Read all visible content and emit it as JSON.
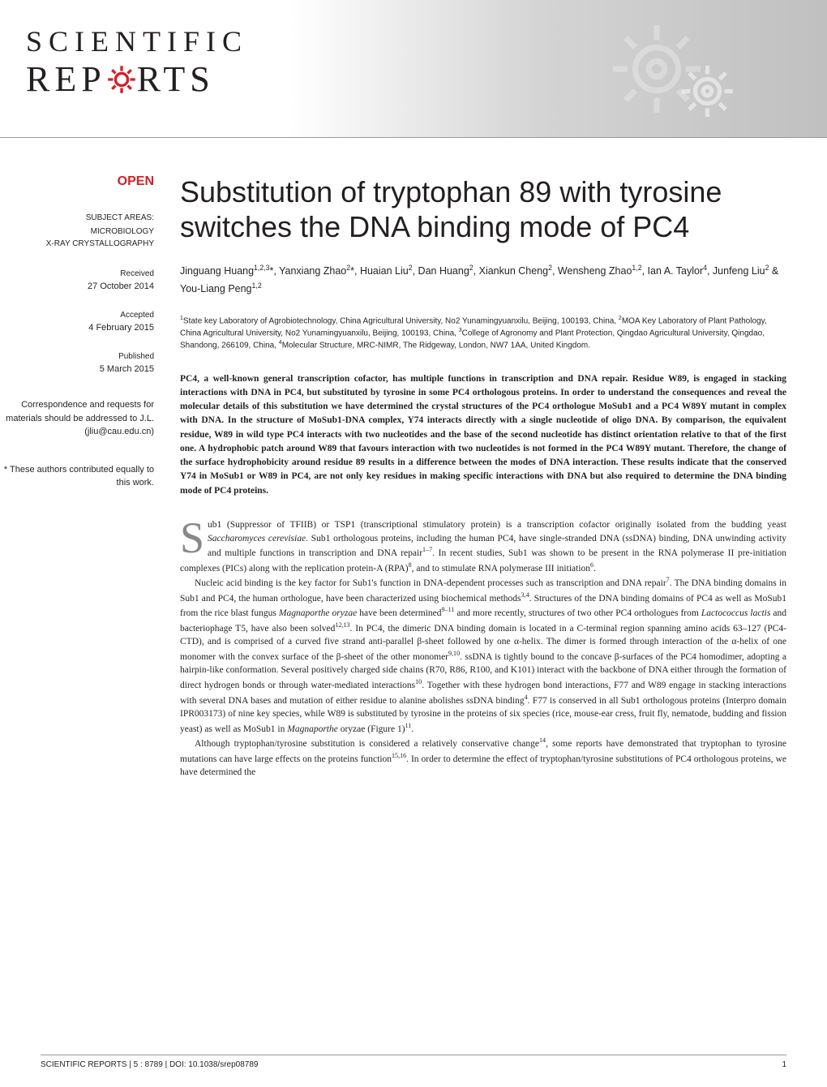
{
  "journal": {
    "logo_top": "SCIENTIFIC",
    "logo_bottom_left": "REP",
    "logo_bottom_right": "RTS"
  },
  "header": {
    "band_gradient_start": "#ffffff",
    "band_gradient_end": "#c0c0c0",
    "gear_color": "#d32027",
    "gear_decor_color": "#e8e8e8"
  },
  "sidebar": {
    "open_label": "OPEN",
    "open_color": "#d32027",
    "subject_heading": "SUBJECT AREAS:",
    "subjects": [
      "MICROBIOLOGY",
      "X-RAY CRYSTALLOGRAPHY"
    ],
    "received_label": "Received",
    "received_date": "27 October 2014",
    "accepted_label": "Accepted",
    "accepted_date": "4 February 2015",
    "published_label": "Published",
    "published_date": "5 March 2015",
    "correspondence": "Correspondence and requests for materials should be addressed to J.L. (jliu@cau.edu.cn)",
    "footnote": "* These authors contributed equally to this work."
  },
  "article": {
    "title": "Substitution of tryptophan 89 with tyrosine switches the DNA binding mode of PC4",
    "title_fontsize": 36,
    "authors_html": "Jinguang Huang<sup>1,2,3</sup>*, Yanxiang Zhao<sup>2</sup>*, Huaian Liu<sup>2</sup>, Dan Huang<sup>2</sup>, Xiankun Cheng<sup>2</sup>, Wensheng Zhao<sup>1,2</sup>, Ian A. Taylor<sup>4</sup>, Junfeng Liu<sup>2</sup> & You-Liang Peng<sup>1,2</sup>",
    "affiliations_html": "<sup>1</sup>State key Laboratory of Agrobiotechnology, China Agricultural University, No2 Yunamingyuanxilu, Beijing, 100193, China, <sup>2</sup>MOA Key Laboratory of Plant Pathology, China Agricultural University, No2 Yunamingyuanxilu, Beijing, 100193, China, <sup>3</sup>College of Agronomy and Plant Protection, Qingdao Agricultural University, Qingdao, Shandong, 266109, China, <sup>4</sup>Molecular Structure, MRC-NIMR, The Ridgeway, London, NW7 1AA, United Kingdom.",
    "abstract": "PC4, a well-known general transcription cofactor, has multiple functions in transcription and DNA repair. Residue W89, is engaged in stacking interactions with DNA in PC4, but substituted by tyrosine in some PC4 orthologous proteins. In order to understand the consequences and reveal the molecular details of this substitution we have determined the crystal structures of the PC4 orthologue MoSub1 and a PC4 W89Y mutant in complex with DNA. In the structure of MoSub1-DNA complex, Y74 interacts directly with a single nucleotide of oligo DNA. By comparison, the equivalent residue, W89 in wild type PC4 interacts with two nucleotides and the base of the second nucleotide has distinct orientation relative to that of the first one. A hydrophobic patch around W89 that favours interaction with two nucleotides is not formed in the PC4 W89Y mutant. Therefore, the change of the surface hydrophobicity around residue 89 results in a difference between the modes of DNA interaction. These results indicate that the conserved Y74 in MoSub1 or W89 in PC4, are not only key residues in making specific interactions with DNA but also required to determine the DNA binding mode of PC4 proteins.",
    "body_p1_html": "ub1 (Suppressor of TFIIB) or TSP1 (transcriptional stimulatory protein) is a transcription cofactor originally isolated from the budding yeast <i>Saccharomyces cerevisiae</i>. Sub1 orthologous proteins, including the human PC4, have single-stranded DNA (ssDNA) binding, DNA unwinding activity and multiple functions in transcription and DNA repair<sup>1–7</sup>. In recent studies, Sub1 was shown to be present in the RNA polymerase II pre-initiation complexes (PICs) along with the replication protein-A (RPA)<sup>8</sup>, and to stimulate RNA polymerase III initiation<sup>6</sup>.",
    "body_p2_html": "Nucleic acid binding is the key factor for Sub1's function in DNA-dependent processes such as transcription and DNA repair<sup>7</sup>. The DNA binding domains in Sub1 and PC4, the human orthologue, have been characterized using biochemical methods<sup>3,4</sup>. Structures of the DNA binding domains of PC4 as well as MoSub1 from the rice blast fungus <i>Magnaporthe oryzae</i> have been determined<sup>9–11</sup> and more recently, structures of two other PC4 orthologues from <i>Lactococcus lactis</i> and bacteriophage T5, have also been solved<sup>12,13</sup>. In PC4, the dimeric DNA binding domain is located in a C-terminal region spanning amino acids 63–127 (PC4-CTD), and is comprised of a curved five strand anti-parallel β-sheet followed by one α-helix. The dimer is formed through interaction of the α-helix of one monomer with the convex surface of the β-sheet of the other monomer<sup>9,10</sup>. ssDNA is tightly bound to the concave β-surfaces of the PC4 homodimer, adopting a hairpin-like conformation. Several positively charged side chains (R70, R86, R100, and K101) interact with the backbone of DNA either through the formation of direct hydrogen bonds or through water-mediated interactions<sup>10</sup>. Together with these hydrogen bond interactions, F77 and W89 engage in stacking interactions with several DNA bases and mutation of either residue to alanine abolishes ssDNA binding<sup>4</sup>. F77 is conserved in all Sub1 orthologous proteins (Interpro domain IPR003173) of nine key species, while W89 is substituted by tyrosine in the proteins of six species (rice, mouse-ear cress, fruit fly, nematode, budding and fission yeast) as well as MoSub1 in <i>Magnaporthe</i> oryzae (Figure 1)<sup>11</sup>.",
    "body_p3_html": "Although tryptophan/tyrosine substitution is considered a relatively conservative change<sup>14</sup>, some reports have demonstrated that tryptophan to tyrosine mutations can have large effects on the proteins function<sup>15,16</sup>. In order to determine the effect of tryptophan/tyrosine substitutions of PC4 orthologous proteins, we have determined the"
  },
  "footer": {
    "citation": "SCIENTIFIC REPORTS | 5 : 8789 | DOI: 10.1038/srep08789",
    "page": "1"
  },
  "colors": {
    "text": "#231f20",
    "accent": "#d32027",
    "dropcap": "#888888"
  }
}
